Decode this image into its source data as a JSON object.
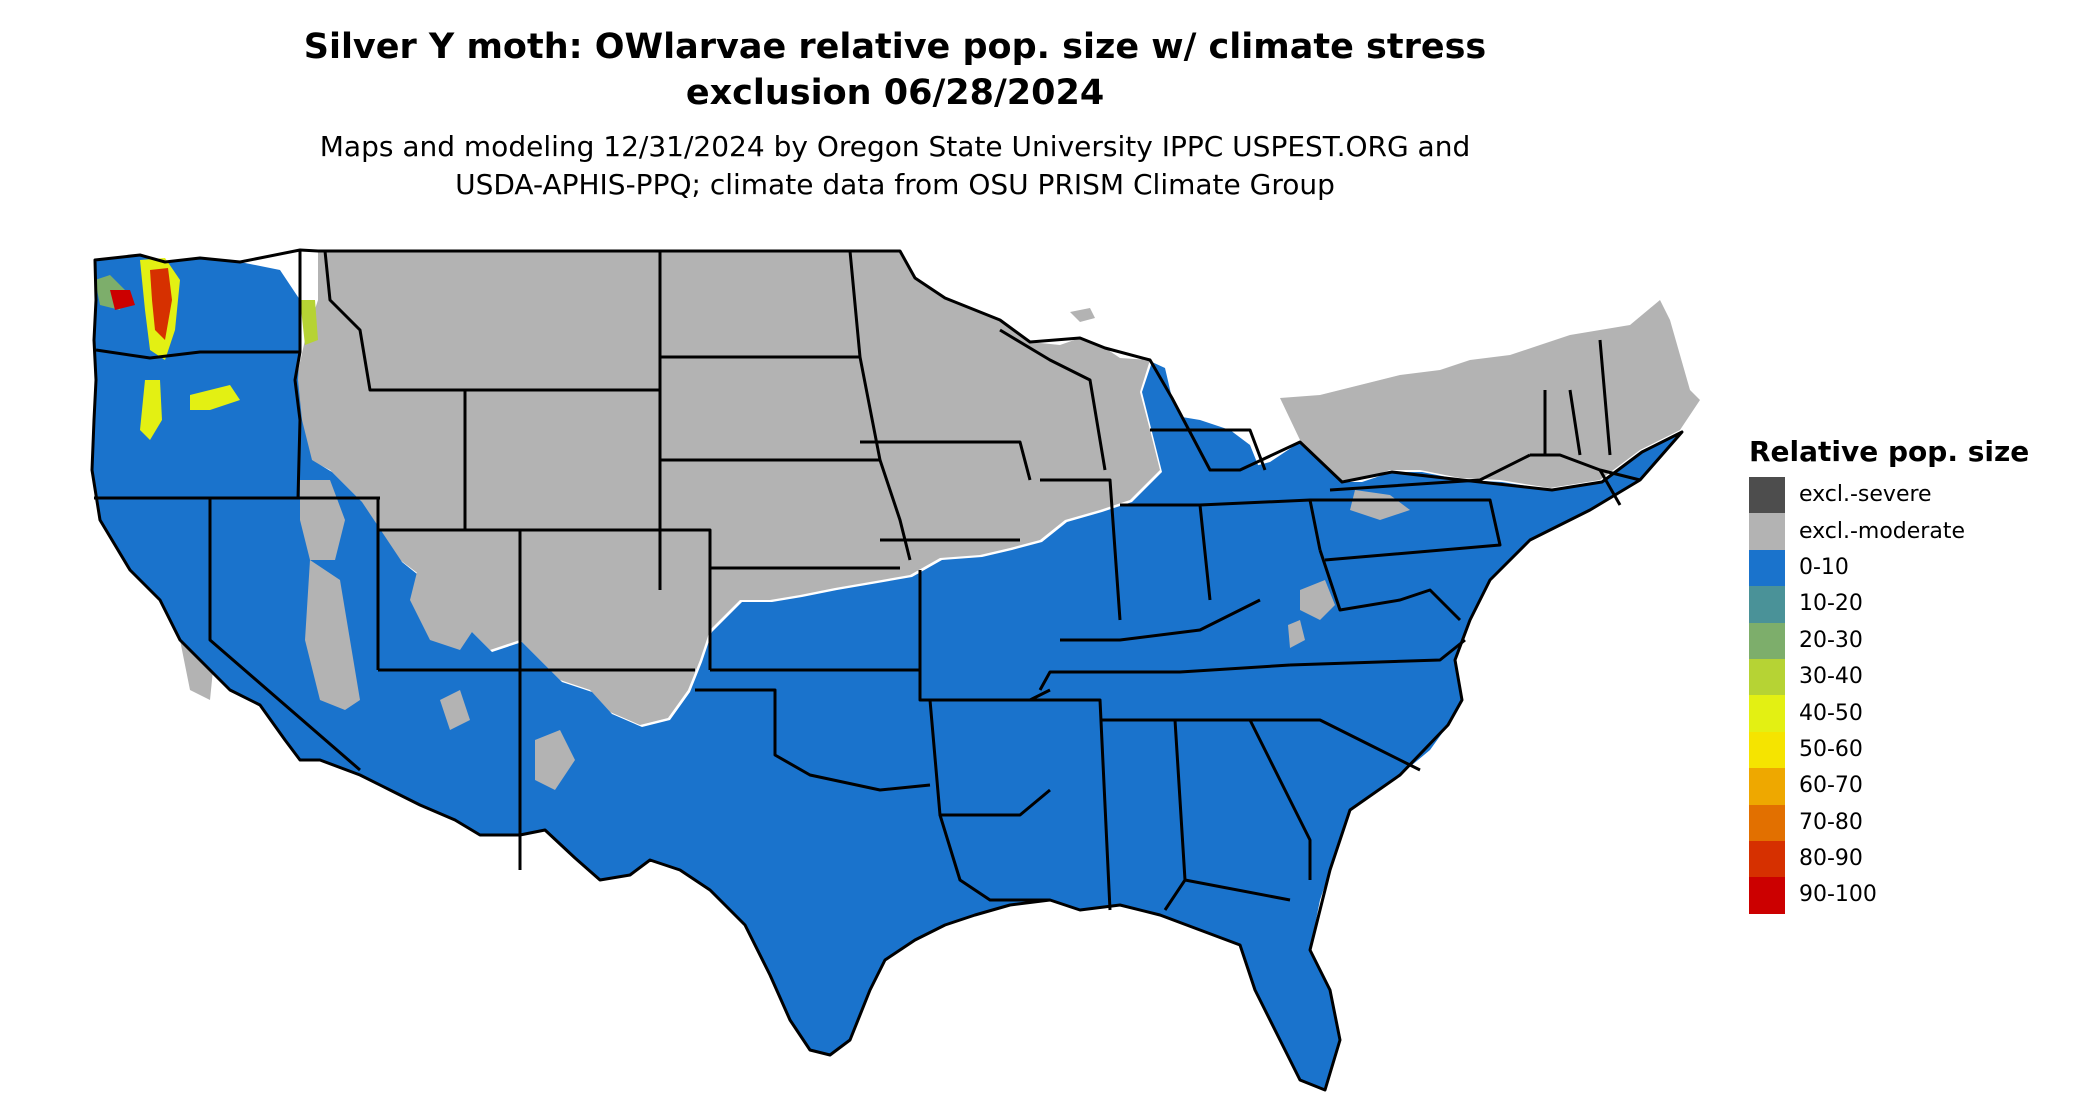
{
  "title": {
    "line1": "Silver Y moth: OWlarvae relative pop. size w/ climate stress",
    "line2": "exclusion 06/28/2024"
  },
  "subtitle": {
    "line1": "Maps and modeling 12/31/2024 by Oregon State University IPPC USPEST.ORG and",
    "line2": "USDA-APHIS-PPQ; climate data from OSU PRISM Climate Group"
  },
  "legend": {
    "title": "Relative pop. size",
    "items": [
      {
        "label": "excl.-severe",
        "color": "#4d4d4d"
      },
      {
        "label": "excl.-moderate",
        "color": "#b3b3b3"
      },
      {
        "label": "0-10",
        "color": "#1a73cc"
      },
      {
        "label": "10-20",
        "color": "#4a9298"
      },
      {
        "label": "20-30",
        "color": "#7dae6b"
      },
      {
        "label": "30-40",
        "color": "#b6d334"
      },
      {
        "label": "40-50",
        "color": "#e3f013"
      },
      {
        "label": "50-60",
        "color": "#f5e400"
      },
      {
        "label": "60-70",
        "color": "#eea800"
      },
      {
        "label": "70-80",
        "color": "#e27000"
      },
      {
        "label": "80-90",
        "color": "#d63000"
      },
      {
        "label": "90-100",
        "color": "#cc0000"
      }
    ]
  },
  "map_colors": {
    "excluded_moderate": "#b3b3b3",
    "low": "#1a73cc",
    "border": "#000000"
  }
}
